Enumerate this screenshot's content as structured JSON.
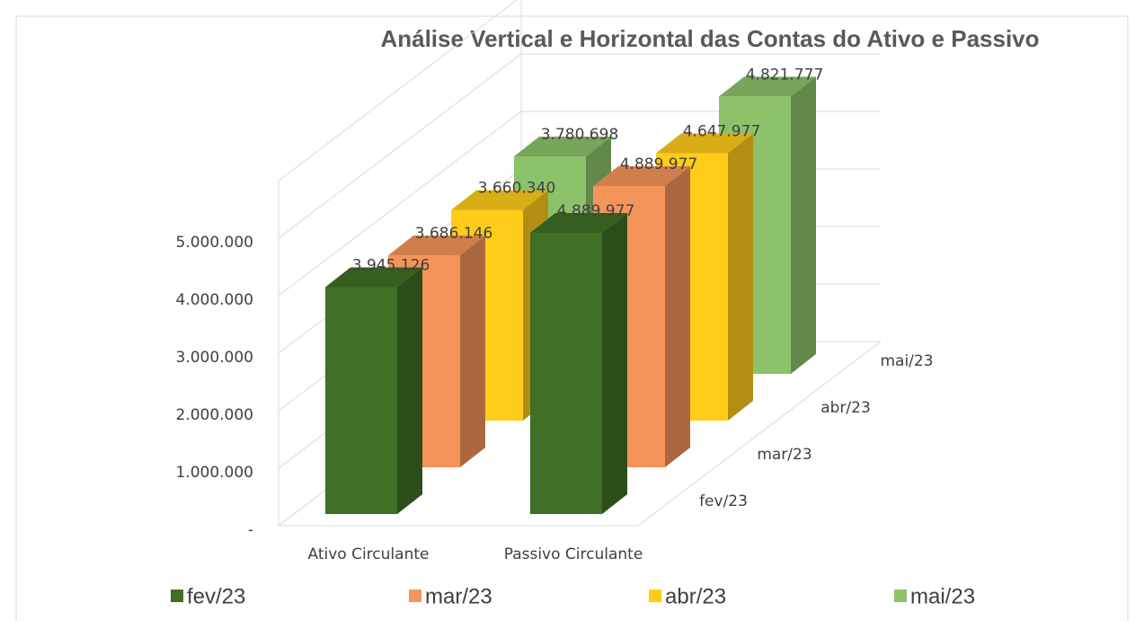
{
  "chart_data": {
    "type": "bar3d",
    "title": "Análise Vertical e Horizontal das Contas do Ativo e Passivo",
    "categories": [
      "Ativo Circulante",
      "Passivo Circulante"
    ],
    "series": [
      {
        "name": "fev/23",
        "color": "#3f7025",
        "values": [
          3945126,
          4889977
        ],
        "value_labels": [
          "3.945.126",
          "4.889.977"
        ]
      },
      {
        "name": "mar/23",
        "color": "#f4945a",
        "values": [
          3686146,
          4889977
        ],
        "value_labels": [
          "3.686.146",
          "4.889.977"
        ]
      },
      {
        "name": "abr/23",
        "color": "#ffcc1a",
        "values": [
          3660340,
          4647977
        ],
        "value_labels": [
          "3.660.340",
          "4.647.977"
        ]
      },
      {
        "name": "mai/23",
        "color": "#8cc26a",
        "values": [
          3780698,
          4821777
        ],
        "value_labels": [
          "3.780.698",
          "4.821.777"
        ]
      }
    ],
    "ylim": [
      0,
      6000000
    ],
    "yticks": [
      {
        "value": 0,
        "label": "-"
      },
      {
        "value": 1000000,
        "label": "1.000.000"
      },
      {
        "value": 2000000,
        "label": "2.000.000"
      },
      {
        "value": 3000000,
        "label": "3.000.000"
      },
      {
        "value": 4000000,
        "label": "4.000.000"
      },
      {
        "value": 5000000,
        "label": "5.000.000"
      }
    ],
    "grid": true,
    "legend": "bottom"
  }
}
